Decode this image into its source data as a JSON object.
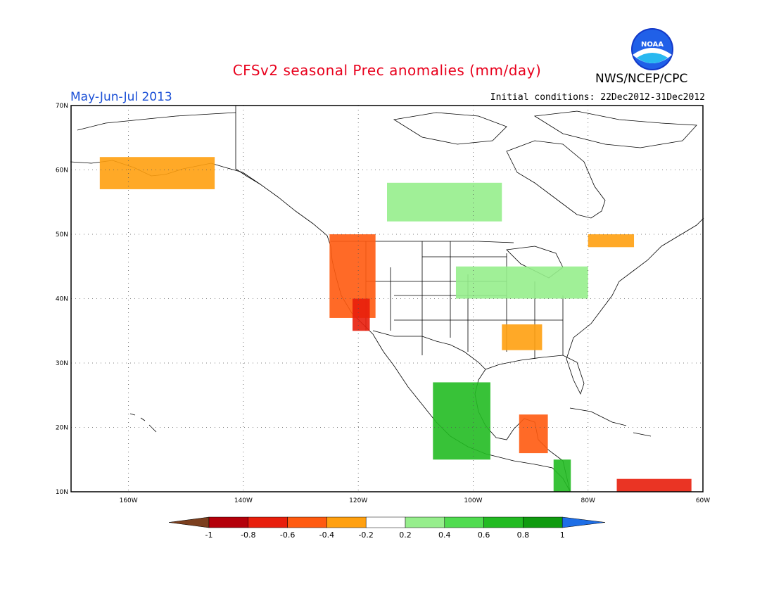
{
  "header": {
    "title": "CFSv2 seasonal Prec anomalies (mm/day)",
    "period": "May-Jun-Jul 2013",
    "initial_conditions": "Initial conditions: 22Dec2012-31Dec2012",
    "agency": "NWS/NCEP/CPC",
    "logo_text": "NOAA"
  },
  "map": {
    "projection": "lat-lon",
    "lon_range": [
      -170,
      -60
    ],
    "lat_range": [
      10,
      70
    ],
    "lat_labels": [
      "10N",
      "20N",
      "30N",
      "40N",
      "50N",
      "60N",
      "70N"
    ],
    "lon_labels": [
      "160W",
      "140W",
      "120W",
      "100W",
      "80W",
      "60W"
    ],
    "grid": "dotted"
  },
  "colorbar": {
    "labels": [
      "-1",
      "-0.8",
      "-0.6",
      "-0.4",
      "-0.2",
      "0.2",
      "0.4",
      "0.6",
      "0.8",
      "1"
    ],
    "colors": [
      "#7b3f1e",
      "#b4000a",
      "#e81e0c",
      "#ff5a10",
      "#ffa010",
      "#ffffff",
      "#96ee8c",
      "#50dc50",
      "#22bb22",
      "#0f9b0f",
      "#1e6ee6"
    ]
  },
  "anomaly_regions": [
    {
      "name": "alaska-south",
      "level": -0.3,
      "lon": [
        -165,
        -145
      ],
      "lat": [
        57,
        62
      ]
    },
    {
      "name": "pacific-northwest",
      "level": -0.5,
      "lon": [
        -125,
        -117
      ],
      "lat": [
        37,
        50
      ]
    },
    {
      "name": "california",
      "level": -0.6,
      "lon": [
        -121,
        -118
      ],
      "lat": [
        35,
        40
      ]
    },
    {
      "name": "southern-plains",
      "level": -0.3,
      "lon": [
        -95,
        -88
      ],
      "lat": [
        32,
        36
      ]
    },
    {
      "name": "great-lakes",
      "level": 0.3,
      "lon": [
        -103,
        -80
      ],
      "lat": [
        40,
        45
      ]
    },
    {
      "name": "quebec-south",
      "level": -0.3,
      "lon": [
        -80,
        -72
      ],
      "lat": [
        48,
        50
      ]
    },
    {
      "name": "canada-central",
      "level": 0.3,
      "lon": [
        -115,
        -95
      ],
      "lat": [
        52,
        58
      ]
    },
    {
      "name": "mexico-west-coast",
      "level": 0.8,
      "lon": [
        -107,
        -97
      ],
      "lat": [
        15,
        27
      ]
    },
    {
      "name": "yucatan",
      "level": -0.5,
      "lon": [
        -92,
        -87
      ],
      "lat": [
        16,
        22
      ]
    },
    {
      "name": "central-america",
      "level": 0.8,
      "lon": [
        -86,
        -83
      ],
      "lat": [
        10,
        15
      ]
    },
    {
      "name": "caribbean-south",
      "level": -0.6,
      "lon": [
        -75,
        -62
      ],
      "lat": [
        10,
        12
      ]
    }
  ]
}
